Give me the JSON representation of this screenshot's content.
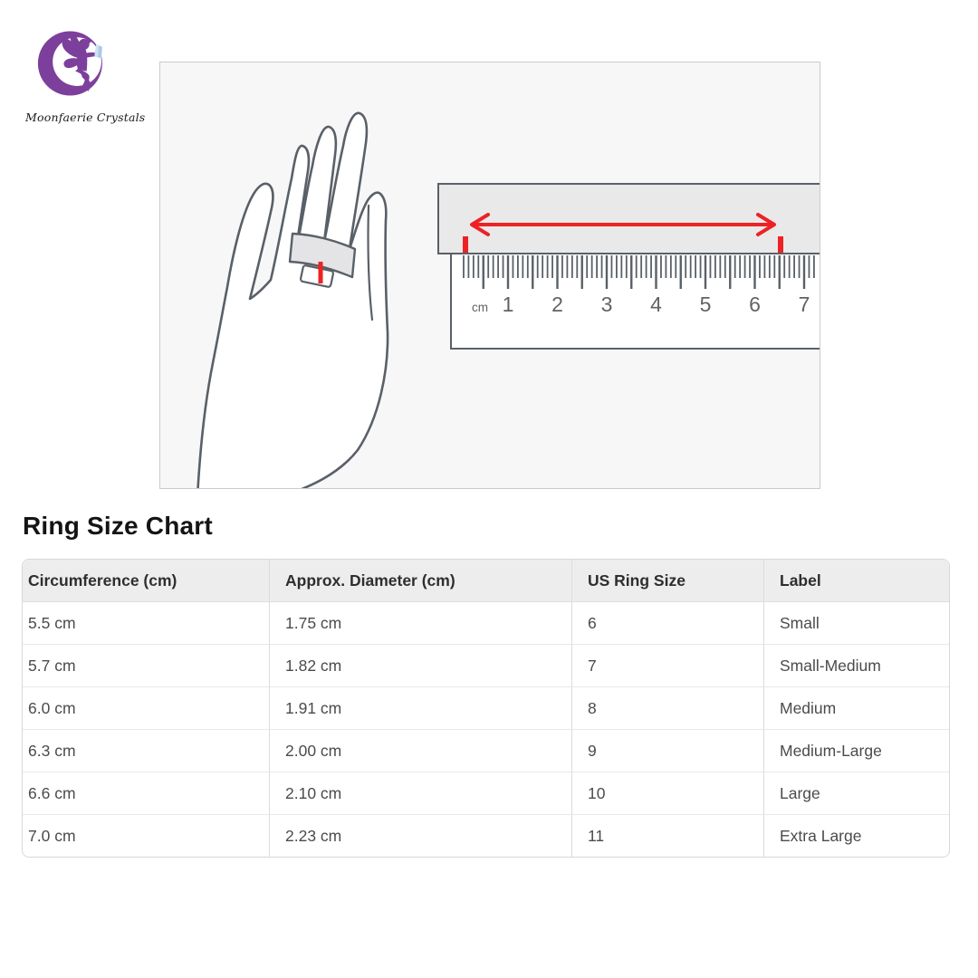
{
  "logo": {
    "brand_name": "Moonfaerie Crystals",
    "moon_color": "#7d3f9c",
    "crystal_color": "#a9cbe8"
  },
  "illustration": {
    "unit_label": "cm",
    "ruler_numbers": [
      "1",
      "2",
      "3",
      "4",
      "5",
      "6",
      "7"
    ],
    "accent_color": "#ed2224",
    "outline_color": "#5a6067"
  },
  "heading": "Ring Size Chart",
  "table": {
    "columns": [
      "Circumference (cm)",
      "Approx. Diameter (cm)",
      "US Ring Size",
      "Label"
    ],
    "rows": [
      [
        "5.5 cm",
        "1.75 cm",
        "6",
        "Small"
      ],
      [
        "5.7 cm",
        "1.82 cm",
        "7",
        "Small-Medium"
      ],
      [
        "6.0 cm",
        "1.91 cm",
        "8",
        "Medium"
      ],
      [
        "6.3 cm",
        "2.00 cm",
        "9",
        "Medium-Large"
      ],
      [
        "6.6 cm",
        "2.10 cm",
        "10",
        "Large"
      ],
      [
        "7.0 cm",
        "2.23 cm",
        "11",
        "Extra Large"
      ]
    ]
  }
}
